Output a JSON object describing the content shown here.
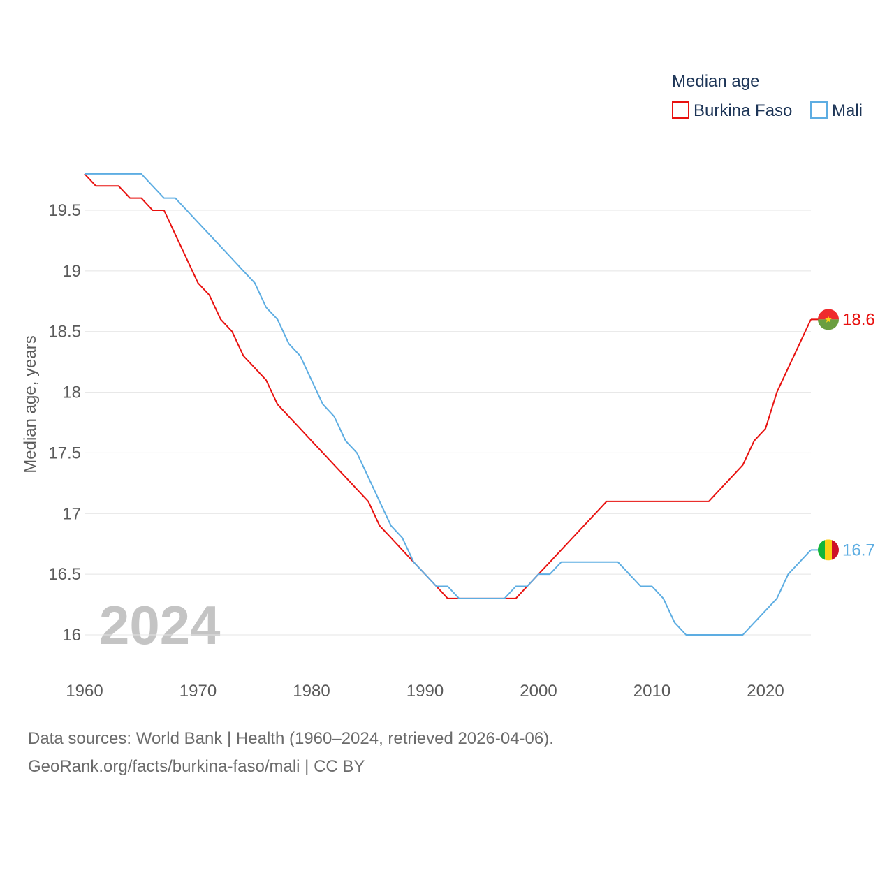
{
  "chart_data": {
    "type": "line",
    "title": "Median age",
    "xlabel": "",
    "ylabel": "Median age, years",
    "xlim": [
      1960,
      2024
    ],
    "ylim": [
      15.9,
      19.8
    ],
    "yticks": [
      16,
      16.5,
      17,
      17.5,
      18,
      18.5,
      19,
      19.5
    ],
    "ytick_labels": [
      "16",
      "16.5",
      "17",
      "17.5",
      "18",
      "18.5",
      "19",
      "19.5"
    ],
    "xticks": [
      1960,
      1970,
      1980,
      1990,
      2000,
      2010,
      2020
    ],
    "xtick_labels": [
      "1960",
      "1970",
      "1980",
      "1990",
      "2000",
      "2010",
      "2020"
    ],
    "grid": true,
    "legend_position": "top-right",
    "current_year": "2024",
    "x": [
      1960,
      1961,
      1962,
      1963,
      1964,
      1965,
      1966,
      1967,
      1968,
      1969,
      1970,
      1971,
      1972,
      1973,
      1974,
      1975,
      1976,
      1977,
      1978,
      1979,
      1980,
      1981,
      1982,
      1983,
      1984,
      1985,
      1986,
      1987,
      1988,
      1989,
      1990,
      1991,
      1992,
      1993,
      1994,
      1995,
      1996,
      1997,
      1998,
      1999,
      2000,
      2001,
      2002,
      2003,
      2004,
      2005,
      2006,
      2007,
      2008,
      2009,
      2010,
      2011,
      2012,
      2013,
      2014,
      2015,
      2016,
      2017,
      2018,
      2019,
      2020,
      2021,
      2022,
      2023,
      2024
    ],
    "series": [
      {
        "name": "Burkina Faso",
        "color": "#e8110f",
        "end_label": "18.6",
        "flag": "burkina-faso-flag-icon",
        "values": [
          19.8,
          19.7,
          19.7,
          19.7,
          19.6,
          19.6,
          19.5,
          19.5,
          19.3,
          19.1,
          18.9,
          18.8,
          18.6,
          18.5,
          18.3,
          18.2,
          18.1,
          17.9,
          17.8,
          17.7,
          17.6,
          17.5,
          17.4,
          17.3,
          17.2,
          17.1,
          16.9,
          16.8,
          16.7,
          16.6,
          16.5,
          16.4,
          16.3,
          16.3,
          16.3,
          16.3,
          16.3,
          16.3,
          16.3,
          16.4,
          16.5,
          16.6,
          16.7,
          16.8,
          16.9,
          17.0,
          17.1,
          17.1,
          17.1,
          17.1,
          17.1,
          17.1,
          17.1,
          17.1,
          17.1,
          17.1,
          17.2,
          17.3,
          17.4,
          17.6,
          17.7,
          18.0,
          18.2,
          18.4,
          18.6
        ]
      },
      {
        "name": "Mali",
        "color": "#5dade2",
        "end_label": "16.7",
        "flag": "mali-flag-icon",
        "values": [
          19.8,
          19.8,
          19.8,
          19.8,
          19.8,
          19.8,
          19.7,
          19.6,
          19.6,
          19.5,
          19.4,
          19.3,
          19.2,
          19.1,
          19.0,
          18.9,
          18.7,
          18.6,
          18.4,
          18.3,
          18.1,
          17.9,
          17.8,
          17.6,
          17.5,
          17.3,
          17.1,
          16.9,
          16.8,
          16.6,
          16.5,
          16.4,
          16.4,
          16.3,
          16.3,
          16.3,
          16.3,
          16.3,
          16.4,
          16.4,
          16.5,
          16.5,
          16.6,
          16.6,
          16.6,
          16.6,
          16.6,
          16.6,
          16.5,
          16.4,
          16.4,
          16.3,
          16.1,
          16.0,
          16.0,
          16.0,
          16.0,
          16.0,
          16.0,
          16.1,
          16.2,
          16.3,
          16.5,
          16.6,
          16.7
        ]
      }
    ]
  },
  "footer": {
    "sources": "Data sources: World Bank | Health (1960–2024, retrieved 2026-04-06).",
    "credit": "GeoRank.org/facts/burkina-faso/mali | CC BY"
  }
}
